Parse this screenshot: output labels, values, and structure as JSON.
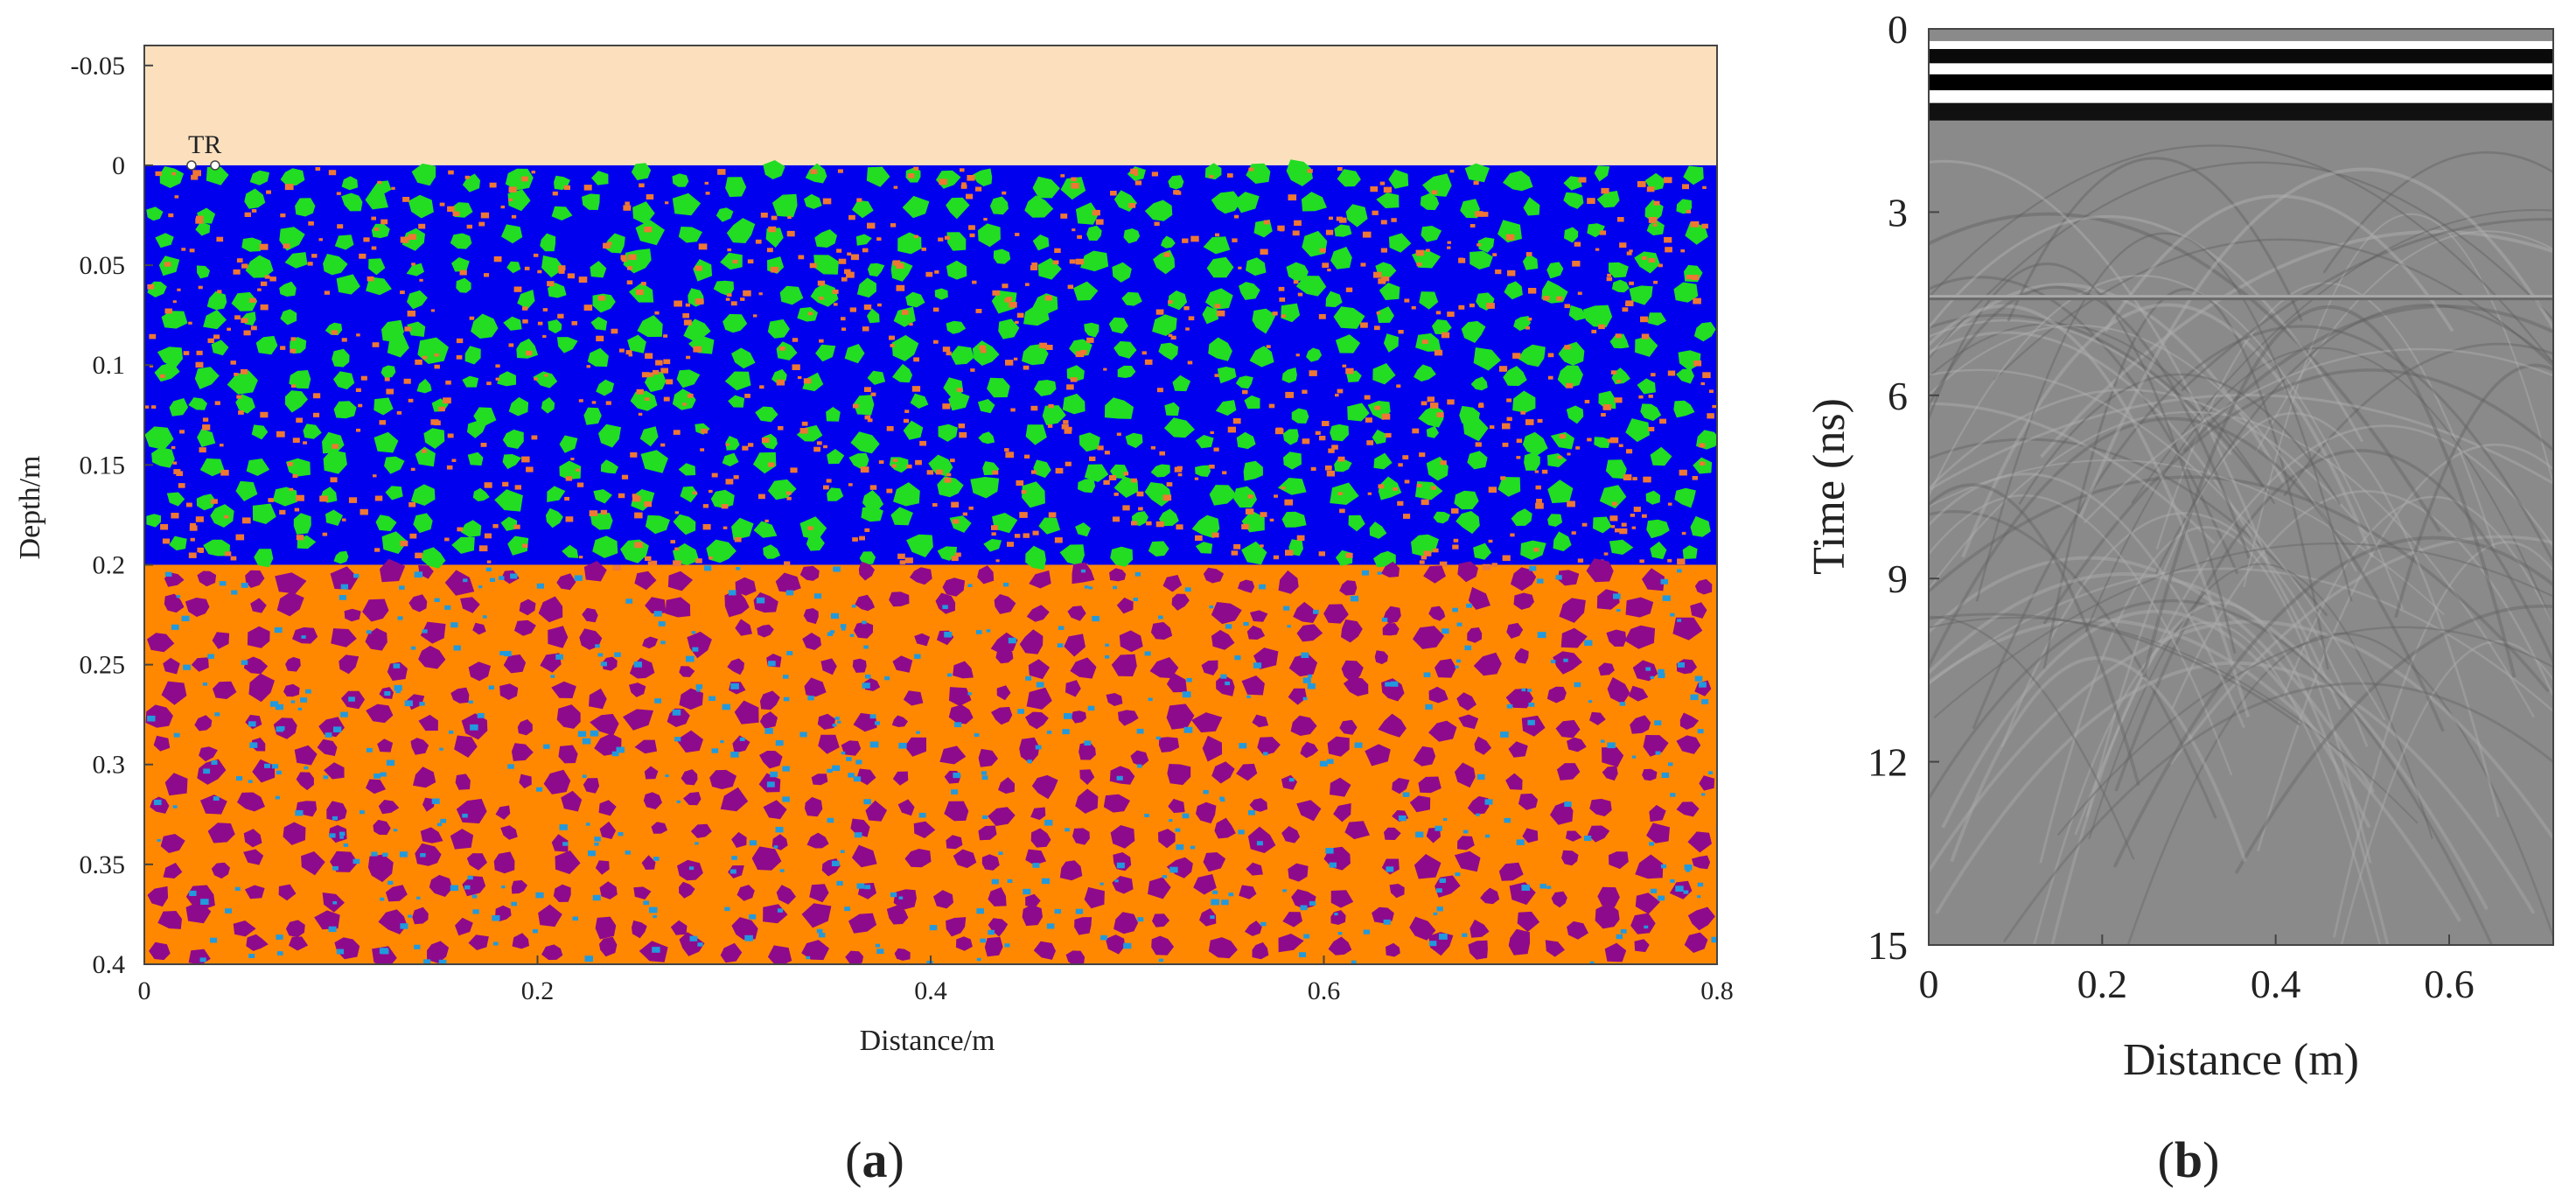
{
  "panel_labels": {
    "a": "(a)",
    "b": "(b)"
  },
  "chart_data": [
    {
      "type": "heatmap",
      "id": "a",
      "xlabel": "Distance/m",
      "ylabel": "Depth/m",
      "xlim": [
        0,
        0.8
      ],
      "ylim": [
        -0.06,
        0.4
      ],
      "y_inverted": true,
      "xticks": [
        0,
        0.2,
        0.4,
        0.6,
        0.8
      ],
      "yticks": [
        -0.05,
        0,
        0.05,
        0.1,
        0.15,
        0.2,
        0.25,
        0.3,
        0.35,
        0.4
      ],
      "annotation": "TR",
      "annotation_position": [
        0.03,
        0
      ],
      "layers": [
        {
          "top": -0.06,
          "bottom": 0.0,
          "matrix": "#FCE0BE"
        },
        {
          "top": 0.0,
          "bottom": 0.2,
          "matrix": "#0000EE",
          "aggregate": "#22DD22",
          "fines": "#EE7733"
        },
        {
          "top": 0.2,
          "bottom": 0.4,
          "matrix": "#FF8800",
          "aggregate": "#8E0A8C",
          "fines": "#2299DD"
        }
      ]
    },
    {
      "type": "heatmap",
      "id": "b",
      "xlabel": "Distance (m)",
      "ylabel": "Time (ns)",
      "xlim": [
        0,
        0.72
      ],
      "ylim": [
        0,
        15
      ],
      "y_inverted": true,
      "xticks": [
        0,
        0.2,
        0.4,
        0.6
      ],
      "yticks": [
        0,
        3,
        6,
        9,
        12,
        15
      ],
      "colormap": "gray",
      "direct_wave_ns": [
        0.8,
        1.5
      ],
      "interface_ns": 4.4
    }
  ]
}
